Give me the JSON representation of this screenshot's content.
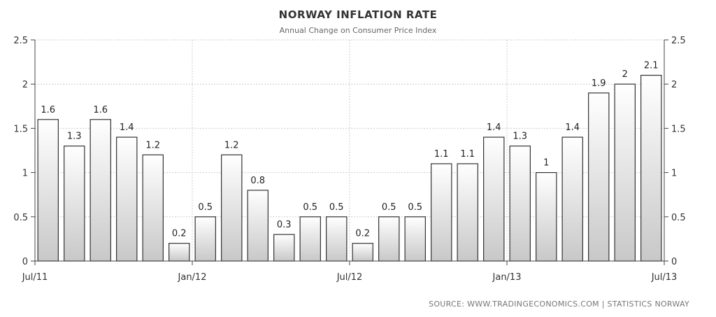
{
  "chart_data": {
    "type": "bar",
    "title": "NORWAY INFLATION RATE",
    "subtitle": "Annual Change on Consumer Price Index",
    "source": "SOURCE:  WWW.TRADINGECONOMICS.COM  |  STATISTICS  NORWAY",
    "xlabel": "",
    "ylabel": "",
    "ylim": [
      0,
      2.5
    ],
    "yticks": [
      "0",
      "0.5",
      "1",
      "1.5",
      "2",
      "2.5"
    ],
    "x_ticks": [
      {
        "label": "Jul/11",
        "index": 0
      },
      {
        "label": "Jan/12",
        "index": 6
      },
      {
        "label": "Jul/12",
        "index": 12
      },
      {
        "label": "Jan/13",
        "index": 18
      },
      {
        "label": "Jul/13",
        "index": 24
      }
    ],
    "values": [
      1.6,
      1.3,
      1.6,
      1.4,
      1.2,
      0.2,
      0.5,
      1.2,
      0.8,
      0.3,
      0.5,
      0.5,
      0.2,
      0.5,
      0.5,
      1.1,
      1.1,
      1.4,
      1.3,
      1.0,
      1.4,
      1.9,
      2.0,
      2.1
    ],
    "value_labels": [
      "1.6",
      "1.3",
      "1.6",
      "1.4",
      "1.2",
      "0.2",
      "0.5",
      "1.2",
      "0.8",
      "0.3",
      "0.5",
      "0.5",
      "0.2",
      "0.5",
      "0.5",
      "1.1",
      "1.1",
      "1.4",
      "1.3",
      "1",
      "1.4",
      "1.9",
      "2",
      "2.1"
    ],
    "grid": true,
    "legend": "none",
    "axes": "left-and-right",
    "colors": {
      "bar_top": "#ffffff",
      "bar_bottom": "#c8c8c8",
      "bar_border": "#333333",
      "grid": "#cccccc",
      "axis": "#444444"
    }
  }
}
